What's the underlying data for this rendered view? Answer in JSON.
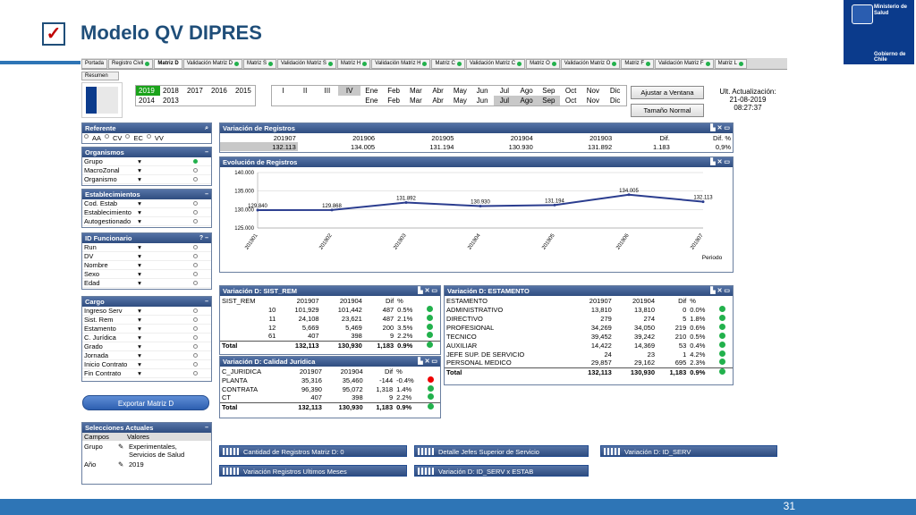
{
  "slide": {
    "title": "Modelo QV DIPRES",
    "check": "✓",
    "logo_line1": "Ministerio de",
    "logo_line2": "Salud",
    "logo_gov": "Gobierno de Chile",
    "page_number": "31"
  },
  "tabs": [
    {
      "label": "Portada",
      "dot": false
    },
    {
      "label": "Registro Civil",
      "dot": true
    },
    {
      "label": "Matriz D",
      "dot": false,
      "active": true
    },
    {
      "label": "Validación Matriz D",
      "dot": true
    },
    {
      "label": "Matriz S",
      "dot": true
    },
    {
      "label": "Validación Matriz S",
      "dot": true
    },
    {
      "label": "Matriz H",
      "dot": true
    },
    {
      "label": "Validación Matriz H",
      "dot": true
    },
    {
      "label": "Matriz C",
      "dot": true
    },
    {
      "label": "Validación Matriz C",
      "dot": true
    },
    {
      "label": "Matriz O",
      "dot": true
    },
    {
      "label": "Validación Matriz O",
      "dot": true
    },
    {
      "label": "Matriz F",
      "dot": true
    },
    {
      "label": "Validación Matriz F",
      "dot": true
    },
    {
      "label": "Matriz L",
      "dot": true
    }
  ],
  "resumen": "Resumen",
  "years": [
    "2019",
    "2018",
    "2017",
    "2016",
    "2015",
    "2014",
    "2013"
  ],
  "months_row1": [
    "I",
    "II",
    "III",
    "IV",
    "Ene",
    "Feb",
    "Mar",
    "Abr",
    "May",
    "Jun",
    "Jul",
    "Ago",
    "Sep",
    "Oct",
    "Nov",
    "Dic"
  ],
  "months_row2": [
    "Ene",
    "Feb",
    "Mar",
    "Abr",
    "May",
    "Jun",
    "Jul",
    "Ago",
    "Sep",
    "Oct",
    "Nov",
    "Dic"
  ],
  "buttons": {
    "ajustar": "Ajustar a Ventana",
    "tamano": "Tamaño Normal",
    "exportar": "Exportar Matriz D"
  },
  "actualizacion": {
    "label": "Ult. Actualización:",
    "fecha": "21-08-2019",
    "hora": "08:27:37"
  },
  "referente": {
    "title": "Referente",
    "options": [
      "AA",
      "CV",
      "EC",
      "VV"
    ]
  },
  "organismos": {
    "title": "Organismos",
    "items": [
      "Grupo",
      "MacroZonal",
      "Organismo"
    ]
  },
  "establecimientos": {
    "title": "Establecimientos",
    "items": [
      "Cod. Estab",
      "Establecimiento",
      "Autogestionado"
    ]
  },
  "id_funcionario": {
    "title": "ID Funcionario",
    "items": [
      "Run",
      "DV",
      "Nombre",
      "Sexo",
      "Edad"
    ]
  },
  "cargo": {
    "title": "Cargo",
    "items": [
      "Ingreso Serv",
      "Sist. Rem",
      "Estamento",
      "C. Jurídica",
      "Grado",
      "Jornada",
      "Inicio Contrato",
      "Fin Contrato"
    ]
  },
  "selecciones": {
    "title": "Selecciones Actuales",
    "headers": [
      "Campos",
      "Valores"
    ],
    "rows": [
      {
        "campo": "Grupo",
        "valor": "Experimentales, Servicios de Salud"
      },
      {
        "campo": "Año",
        "valor": "2019"
      }
    ]
  },
  "variacion_registros": {
    "title": "Variación de Registros",
    "headers": [
      "201907",
      "201906",
      "201905",
      "201904",
      "201903",
      "Dif.",
      "Dif. %"
    ],
    "values": [
      "132.113",
      "134.005",
      "131.194",
      "130.930",
      "131.892",
      "1.183",
      "0,9%"
    ]
  },
  "evolucion": {
    "title": "Evolución de Registros",
    "axis_label": "Periodo"
  },
  "chart_data": {
    "type": "line",
    "title": "Evolución de Registros",
    "xlabel": "Periodo",
    "ylabel": "",
    "categories": [
      "201901",
      "201902",
      "201903",
      "201904",
      "201905",
      "201906",
      "201907"
    ],
    "series": [
      {
        "values": [
          129840,
          129868,
          131892,
          130930,
          131194,
          134005,
          132113
        ]
      }
    ],
    "point_labels": [
      "129.840",
      "129.868",
      "131.892",
      "130.930",
      "131.194",
      "134.005",
      "132.113"
    ],
    "yticks": [
      "125.000",
      "130.000",
      "135.000",
      "140.000"
    ],
    "ylim": [
      125000,
      140000
    ],
    "color": "#2b3d8f"
  },
  "sist_rem": {
    "title": "Variación D: SIST_REM",
    "headers": [
      "SIST_REM",
      "201907",
      "201904",
      "Dif",
      "%"
    ],
    "rows": [
      {
        "c": "10",
        "a": "101,929",
        "b": "101,442",
        "d": "487",
        "p": "0.5%"
      },
      {
        "c": "11",
        "a": "24,108",
        "b": "23,621",
        "d": "487",
        "p": "2.1%"
      },
      {
        "c": "12",
        "a": "5,669",
        "b": "5,469",
        "d": "200",
        "p": "3.5%"
      },
      {
        "c": "61",
        "a": "407",
        "b": "398",
        "d": "9",
        "p": "2.2%"
      }
    ],
    "total": {
      "c": "Total",
      "a": "132,113",
      "b": "130,930",
      "d": "1,183",
      "p": "0.9%"
    }
  },
  "calidad": {
    "title": "Variación D: Calidad Jurídica",
    "headers": [
      "C_JURIDICA",
      "201907",
      "201904",
      "Dif",
      "%"
    ],
    "rows": [
      {
        "c": "PLANTA",
        "a": "35,316",
        "b": "35,460",
        "d": "-144",
        "p": "-0.4%",
        "s": "red"
      },
      {
        "c": "CONTRATA",
        "a": "96,390",
        "b": "95,072",
        "d": "1,318",
        "p": "1.4%",
        "s": "green"
      },
      {
        "c": "CT",
        "a": "407",
        "b": "398",
        "d": "9",
        "p": "2.2%",
        "s": "green"
      }
    ],
    "total": {
      "c": "Total",
      "a": "132,113",
      "b": "130,930",
      "d": "1,183",
      "p": "0.9%"
    }
  },
  "estamento": {
    "title": "Variación D: ESTAMENTO",
    "headers": [
      "ESTAMENTO",
      "201907",
      "201904",
      "Dif",
      "%"
    ],
    "rows": [
      {
        "c": "ADMINISTRATIVO",
        "a": "13,810",
        "b": "13,810",
        "d": "0",
        "p": "0.0%"
      },
      {
        "c": "DIRECTIVO",
        "a": "279",
        "b": "274",
        "d": "5",
        "p": "1.8%"
      },
      {
        "c": "PROFESIONAL",
        "a": "34,269",
        "b": "34,050",
        "d": "219",
        "p": "0.6%"
      },
      {
        "c": "TECNICO",
        "a": "39,452",
        "b": "39,242",
        "d": "210",
        "p": "0.5%"
      },
      {
        "c": "AUXILIAR",
        "a": "14,422",
        "b": "14,369",
        "d": "53",
        "p": "0.4%"
      },
      {
        "c": "JEFE SUP. DE SERVICIO",
        "a": "24",
        "b": "23",
        "d": "1",
        "p": "4.2%"
      },
      {
        "c": "PERSONAL MEDICO",
        "a": "29,857",
        "b": "29,162",
        "d": "695",
        "p": "2.3%"
      }
    ],
    "total": {
      "c": "Total",
      "a": "132,113",
      "b": "130,930",
      "d": "1,183",
      "p": "0.9%"
    }
  },
  "minimized": [
    "Cantidad de Registros Matriz D: 0",
    "Detalle Jefes Superior de Servicio",
    "Variación D: ID_SERV",
    "Variación Registros Ultimos Meses",
    "Variación D: ID_SERV x ESTAB"
  ]
}
